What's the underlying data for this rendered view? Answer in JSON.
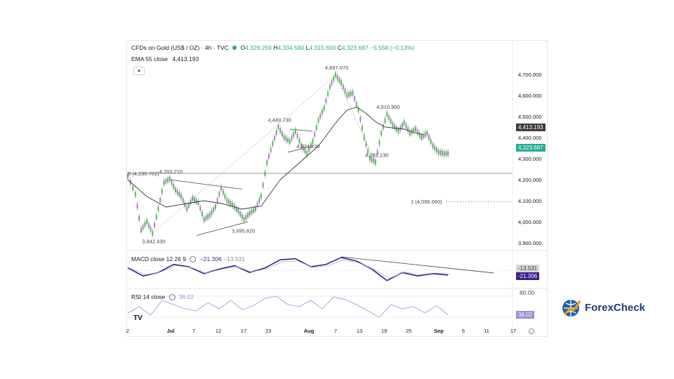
{
  "header": {
    "symbol": "CFDs on Gold (US$ / OZ) · 4h · TVC",
    "o_label": "O",
    "o": "4,329.259",
    "h_label": "H",
    "h": "4,334.580",
    "l_label": "L",
    "l": "4,315.600",
    "c_label": "C",
    "c": "4,323.687",
    "change": "−5.558 (−0.13%)",
    "ema_label": "EMA 55 close",
    "ema_value": "4,413.193"
  },
  "badges": {
    "ema": "4,413.193",
    "price": "4,323.687",
    "macd_signal": "-13.531",
    "macd": "-21.306",
    "rsi": "36.02"
  },
  "macd_pane": {
    "label": "MACD close 12 26 9",
    "value1": "−21.306",
    "value2": "−13.531"
  },
  "rsi_pane": {
    "label": "RSI 14 close",
    "value": "36.02",
    "level": "80.00"
  },
  "brand": {
    "name_a": "Forex",
    "name_b": "Check"
  },
  "colors": {
    "bull": "#4caf50",
    "bear": "#b06ad0",
    "ema": "#333333",
    "macd": "#3b1e8a",
    "rsi": "#9c8fd4",
    "price_badge": "#22ab94",
    "ema_badge": "#3c3c3c"
  },
  "chart_data": {
    "type": "line",
    "ylim": [
      3880,
      4760
    ],
    "y_ticks": [
      3900,
      4000,
      4100,
      4200,
      4300,
      4400,
      4500,
      4600,
      4700
    ],
    "y_tick_labels": [
      "3,900.000",
      "4,000.000",
      "4,100.000",
      "4,200.000",
      "4,300.000",
      "4,400.000",
      "4,500.000",
      "4,600.000",
      "4,700.000"
    ],
    "x_tick_labels": [
      "2",
      "Jul",
      "7",
      "12",
      "17",
      "23",
      "Aug",
      "7",
      "13",
      "19",
      "25",
      "Sep",
      "6",
      "11",
      "17"
    ],
    "series": [
      {
        "x": [
          0,
          4,
          7,
          10,
          13,
          16,
          19,
          22,
          25,
          28,
          31,
          34,
          37,
          40,
          43,
          46,
          49,
          52,
          55,
          58,
          61,
          64,
          67,
          70,
          73,
          76,
          79,
          82,
          85,
          88,
          91,
          94,
          97,
          100,
          103,
          106,
          109,
          112,
          115,
          118,
          121,
          124,
          127,
          130,
          133,
          136,
          139,
          142,
          145,
          148,
          151,
          154,
          157,
          160,
          163,
          166,
          169,
          172,
          175,
          178,
          181,
          184,
          187,
          190
        ],
        "values": [
          4215,
          4130,
          3960,
          4000,
          3945,
          4060,
          4185,
          4203,
          4150,
          4120,
          4060,
          4110,
          4090,
          4010,
          4030,
          4070,
          4160,
          4100,
          4080,
          4050,
          4010,
          4040,
          4060,
          4120,
          4280,
          4370,
          4449,
          4400,
          4380,
          4430,
          4360,
          4324,
          4380,
          4480,
          4540,
          4640,
          4697,
          4660,
          4600,
          4610,
          4530,
          4400,
          4300,
          4282,
          4420,
          4510,
          4460,
          4430,
          4470,
          4420,
          4440,
          4400,
          4420,
          4360,
          4330,
          4323,
          4323,
          4323,
          4323,
          4323,
          4323,
          4323,
          4323,
          4323
        ]
      },
      {
        "name": "EMA 55 close",
        "x": [
          0,
          10,
          20,
          30,
          40,
          50,
          60,
          70,
          80,
          90,
          95,
          100,
          105,
          110,
          115,
          120,
          125,
          130,
          135,
          140,
          145,
          150,
          155
        ],
        "values": [
          4200,
          4120,
          4070,
          4085,
          4100,
          4085,
          4060,
          4075,
          4200,
          4280,
          4320,
          4360,
          4420,
          4480,
          4530,
          4545,
          4515,
          4475,
          4450,
          4445,
          4440,
          4425,
          4413
        ]
      }
    ],
    "annotations": [
      {
        "text": "3,942.430",
        "x": 13,
        "y": 3945
      },
      {
        "text": "4,203.210",
        "x": 22,
        "y": 4203
      },
      {
        "text": "3,995.820",
        "x": 60,
        "y": 3995
      },
      {
        "text": "4,449.730",
        "x": 79,
        "y": 4449
      },
      {
        "text": "4,324.230",
        "x": 94,
        "y": 4324
      },
      {
        "text": "4,697.070",
        "x": 109,
        "y": 4697
      },
      {
        "text": "4,510.900",
        "x": 136,
        "y": 4510
      },
      {
        "text": "4,282.230",
        "x": 130,
        "y": 4282
      },
      {
        "text": "8 (4,230.702)",
        "x": 0,
        "y": 4230
      },
      {
        "text": "1 (4,096.060)",
        "x": 118,
        "y": 4096
      }
    ]
  },
  "macd_data": {
    "x": [
      0,
      8,
      16,
      24,
      32,
      40,
      48,
      56,
      64,
      72,
      80,
      88,
      96,
      104,
      112,
      120,
      128,
      136,
      144,
      152,
      160,
      168
    ],
    "values": [
      10,
      -25,
      -10,
      25,
      15,
      -15,
      5,
      20,
      -10,
      10,
      45,
      50,
      15,
      25,
      55,
      40,
      5,
      -45,
      -10,
      -25,
      -15,
      -21
    ],
    "ylim": [
      -70,
      70
    ]
  },
  "rsi_data": {
    "x": [
      0,
      6,
      12,
      18,
      24,
      30,
      36,
      42,
      48,
      54,
      60,
      66,
      72,
      78,
      84,
      90,
      96,
      102,
      108,
      114,
      120,
      126,
      132,
      138,
      144,
      150,
      156,
      162,
      168
    ],
    "values": [
      40,
      55,
      35,
      70,
      60,
      50,
      45,
      65,
      50,
      70,
      48,
      58,
      75,
      80,
      60,
      55,
      70,
      50,
      78,
      72,
      60,
      45,
      30,
      60,
      50,
      55,
      40,
      58,
      36
    ],
    "ylim": [
      20,
      90
    ]
  }
}
